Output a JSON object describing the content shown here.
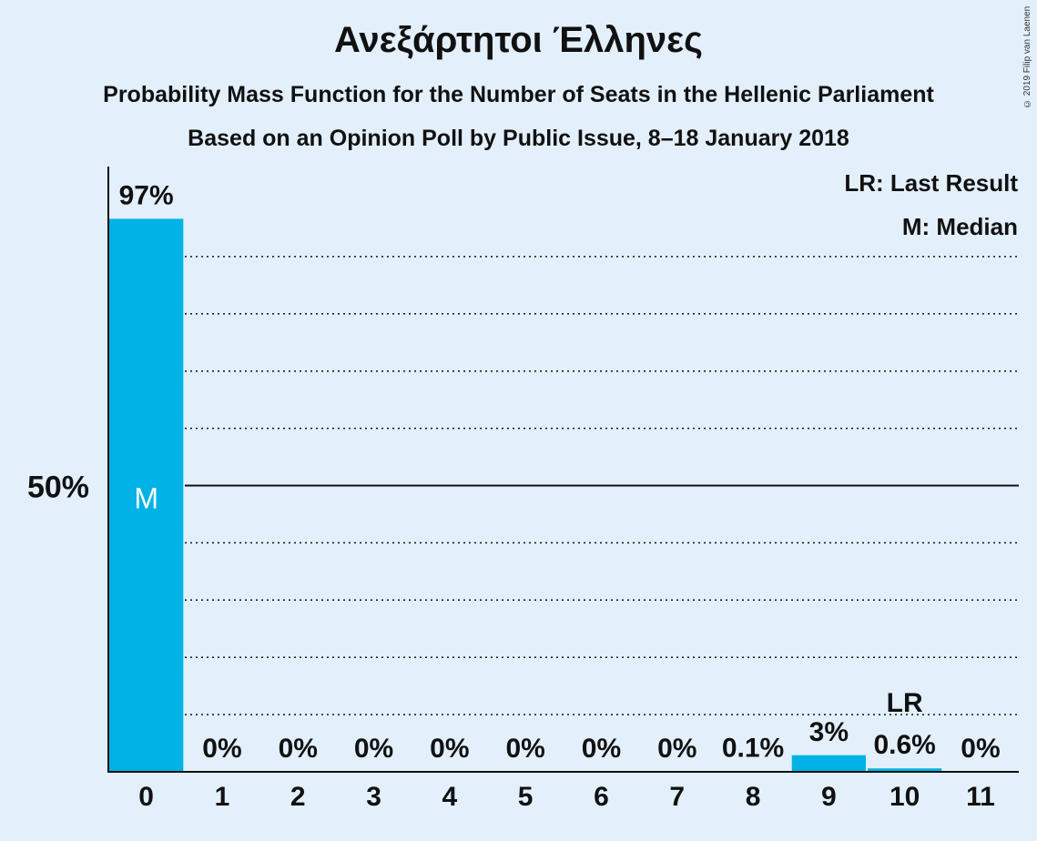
{
  "title": "Ανεξάρτητοι Έλληνες",
  "subtitle": "Probability Mass Function for the Number of Seats in the Hellenic Parliament",
  "subtitle2": "Based on an Opinion Poll by Public Issue, 8–18 January 2018",
  "copyright": "© 2019 Filip van Laenen",
  "legend": {
    "last_result": "LR: Last Result",
    "median": "M: Median"
  },
  "colors": {
    "bar": "#00b2e5",
    "background": "#e3f0fc",
    "text": "#111111"
  },
  "chart_data": {
    "type": "bar",
    "categories": [
      "0",
      "1",
      "2",
      "3",
      "4",
      "5",
      "6",
      "7",
      "8",
      "9",
      "10",
      "11"
    ],
    "values": [
      96.6,
      0,
      0,
      0,
      0,
      0,
      0,
      0,
      0.1,
      2.9,
      0.6,
      0
    ],
    "value_labels": [
      "97%",
      "0%",
      "0%",
      "0%",
      "0%",
      "0%",
      "0%",
      "0%",
      "0.1%",
      "3%",
      "0.6%",
      "0%"
    ],
    "ylim": [
      0,
      100
    ],
    "y_tick_label": "50%",
    "y_tick_value": 50,
    "gridlines": [
      10,
      20,
      30,
      40,
      60,
      70,
      80,
      90
    ],
    "median_index": 0,
    "median_marker": "M",
    "last_result_index": 10,
    "last_result_marker": "LR",
    "xlabel": "",
    "ylabel": ""
  }
}
